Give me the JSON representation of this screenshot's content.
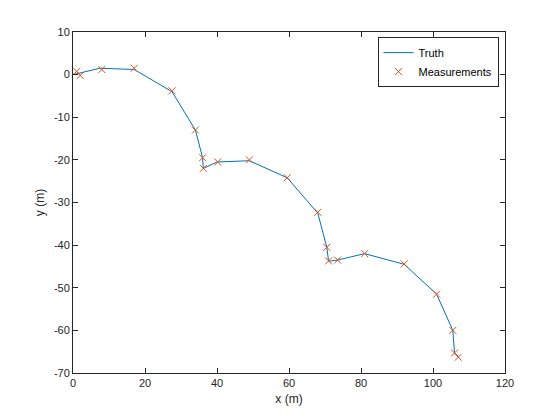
{
  "chart_data": {
    "type": "line",
    "x_label": "x (m)",
    "y_label": "y (m)",
    "xlim": [
      0,
      120
    ],
    "ylim": [
      -70,
      10
    ],
    "xticks": [
      0,
      20,
      40,
      60,
      80,
      100,
      120
    ],
    "yticks": [
      -70,
      -60,
      -50,
      -40,
      -30,
      -20,
      -10,
      0,
      10
    ],
    "grid": false,
    "legend": "upper right",
    "series": [
      {
        "name": "Truth",
        "type": "line",
        "line_style": "solid",
        "color": "#0072bd",
        "x": [
          0,
          7.5,
          17,
          27.5,
          34,
          36,
          36.2,
          40,
          49,
          59.5,
          68,
          70.5,
          71,
          73.5,
          81,
          92,
          101,
          105.5,
          106,
          107
        ],
        "values": [
          0,
          1.5,
          1.2,
          -4,
          -13,
          -19.5,
          -22,
          -20.5,
          -20.2,
          -24.2,
          -32.5,
          -40.5,
          -43.8,
          -43.5,
          -42,
          -44.5,
          -51.5,
          -60,
          -65.5,
          -66
        ]
      },
      {
        "name": "Measurements",
        "type": "scatter",
        "marker": "x",
        "color": "#d95319",
        "x": [
          1,
          2,
          8,
          17,
          27.5,
          34,
          36,
          36.2,
          40.2,
          49,
          59.5,
          68,
          70.5,
          71,
          73.5,
          81,
          92,
          101,
          105.5,
          106,
          107
        ],
        "values": [
          0.8,
          -0.2,
          1.2,
          1.5,
          -3.8,
          -13,
          -19.5,
          -22,
          -20.5,
          -20,
          -24.2,
          -32.3,
          -40.5,
          -43.7,
          -43.5,
          -42,
          -44.4,
          -51.5,
          -60,
          -65.3,
          -66.3
        ]
      }
    ]
  }
}
